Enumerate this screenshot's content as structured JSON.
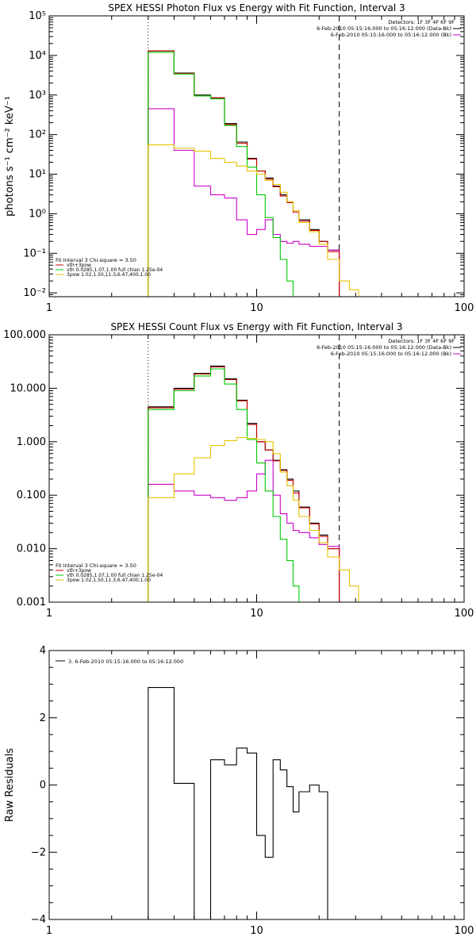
{
  "colors": {
    "data": "#000000",
    "background": "#cc0000",
    "total": "#00cc00",
    "thermal": "#cc00cc",
    "nonthermal": "#e6c400",
    "frame": "#000000"
  },
  "chart_data": [
    {
      "type": "line",
      "title": "SPEX HESSI Photon Flux vs Energy with Fit Function, Interval 3",
      "xlabel": "",
      "ylabel": "photons s⁻¹ cm⁻² keV⁻¹",
      "xscale": "log",
      "yscale": "log",
      "xlim": [
        1,
        100
      ],
      "ylim": [
        0.008,
        100000
      ],
      "x_ticks": [
        1,
        10,
        100
      ],
      "x_tick_labels": [
        "1",
        "10",
        "100"
      ],
      "y_ticks": [
        0.01,
        0.1,
        1,
        10,
        100,
        1000,
        10000,
        100000
      ],
      "y_tick_labels": [
        "10⁻²",
        "10⁻¹",
        "10⁰",
        "10¹",
        "10²",
        "10³",
        "10⁴",
        "10⁵"
      ],
      "vlines": [
        {
          "x": 3,
          "style": "dotted"
        },
        {
          "x": 25,
          "style": "dashed"
        }
      ],
      "legend_top": [
        "Detectors: 1F 3F 4F 6F 9F",
        "6-Feb-2010 05:15:16.000 to 05:16:12.000 (Data-Bk)",
        "6-Feb-2010 05:15:16.000 to 05:16:12.000 (Bk)"
      ],
      "legend_bottom": [
        "Fit Interval 3   Chi-square = 3.50",
        "vth+3pow",
        "vth 0.0285,1.07,1.00  full chian 1.25e-04",
        "3pow 1.02,1.50,11.3,6.47,400,1.00"
      ],
      "edges": [
        3,
        4,
        5,
        6,
        7,
        8,
        9,
        10,
        11,
        12,
        13,
        14,
        15,
        16,
        18,
        20,
        22,
        25,
        28,
        31,
        35
      ],
      "series": [
        {
          "name": "Data-Bk",
          "color": "data",
          "values": [
            13000,
            3600,
            1000,
            850,
            190,
            65,
            25,
            12,
            8,
            5,
            3,
            2,
            1.2,
            0.7,
            0.4,
            0.2,
            0.12,
            null,
            null,
            null
          ]
        },
        {
          "name": "Bk",
          "color": "thermal",
          "values": [
            450,
            40,
            5,
            3,
            2.5,
            0.7,
            0.3,
            0.4,
            0.7,
            0.3,
            0.2,
            0.18,
            0.2,
            0.17,
            0.15,
            0.15,
            0.12,
            0.008,
            null,
            null
          ]
        },
        {
          "name": "vth+3pow",
          "color": "background",
          "values": [
            13000,
            3500,
            950,
            850,
            180,
            60,
            24,
            12,
            7.5,
            4.8,
            2.8,
            1.9,
            1.1,
            0.65,
            0.38,
            0.2,
            0.11,
            null,
            null,
            null
          ]
        },
        {
          "name": "vth",
          "color": "total",
          "values": [
            12000,
            3400,
            950,
            800,
            170,
            50,
            15,
            3,
            0.8,
            0.25,
            0.07,
            0.02,
            0.008,
            null,
            null,
            null,
            null,
            null,
            null,
            null
          ]
        },
        {
          "name": "3pow",
          "color": "nonthermal",
          "values": [
            55,
            45,
            38,
            25,
            20,
            16,
            12,
            10,
            7,
            5.5,
            3.5,
            2,
            1.2,
            0.6,
            0.35,
            0.17,
            0.07,
            0.02,
            0.012,
            0.008
          ]
        }
      ]
    },
    {
      "type": "line",
      "title": "SPEX HESSI Count Flux vs Energy with Fit Function, Interval 3",
      "xlabel": "",
      "ylabel": "",
      "xscale": "log",
      "yscale": "log",
      "xlim": [
        1,
        100
      ],
      "ylim": [
        0.001,
        100
      ],
      "x_ticks": [
        1,
        10,
        100
      ],
      "x_tick_labels": [
        "1",
        "10",
        "100"
      ],
      "y_ticks": [
        0.001,
        0.01,
        0.1,
        1,
        10,
        100
      ],
      "y_tick_labels": [
        "0.001",
        "0.010",
        "0.100",
        "1.000",
        "10.000",
        "100.000"
      ],
      "vlines": [
        {
          "x": 3,
          "style": "dotted"
        },
        {
          "x": 25,
          "style": "dashed"
        }
      ],
      "legend_top": [
        "Detectors: 1F 3F 4F 6F 9F",
        "6-Feb-2010 05:15:16.000 to 05:16:12.000 (Data-Bk)",
        "6-Feb-2010 05:15:16.000 to 05:16:12.000 (Bk)"
      ],
      "legend_bottom": [
        "Fit Interval 3   Chi-square = 3.50",
        "vth+3pow",
        "vth 0.0285,1.07,1.00  full chian 1.25e-04",
        "3pow 1.02,1.50,11.3,6.47,400,1.00"
      ],
      "edges": [
        3,
        4,
        5,
        6,
        7,
        8,
        9,
        10,
        11,
        12,
        13,
        14,
        15,
        16,
        18,
        20,
        22,
        25,
        28,
        31,
        35
      ],
      "series": [
        {
          "name": "Data-Bk",
          "color": "data",
          "values": [
            4.5,
            10,
            19,
            26,
            15,
            6,
            2.2,
            1.0,
            0.7,
            0.45,
            0.3,
            0.2,
            0.12,
            0.06,
            0.03,
            0.018,
            0.01,
            null,
            null,
            null
          ]
        },
        {
          "name": "Bk",
          "color": "thermal",
          "values": [
            0.16,
            0.12,
            0.1,
            0.09,
            0.08,
            0.09,
            0.12,
            0.25,
            0.45,
            0.1,
            0.045,
            0.03,
            0.022,
            0.02,
            0.016,
            0.012,
            0.011,
            0.001,
            null,
            null
          ]
        },
        {
          "name": "vth+3pow",
          "color": "background",
          "values": [
            4.3,
            9.6,
            18.5,
            25,
            14.5,
            5.8,
            2.1,
            1.0,
            0.7,
            0.44,
            0.29,
            0.19,
            0.11,
            0.058,
            0.029,
            0.017,
            0.01,
            null,
            null,
            null
          ]
        },
        {
          "name": "vth",
          "color": "total",
          "values": [
            4,
            9,
            17,
            23,
            12,
            4,
            1.1,
            0.4,
            0.12,
            0.04,
            0.015,
            0.006,
            0.002,
            0.001,
            null,
            null,
            null,
            null,
            null,
            null
          ]
        },
        {
          "name": "3pow",
          "color": "nonthermal",
          "values": [
            0.09,
            0.25,
            0.5,
            0.85,
            1.05,
            1.2,
            1.15,
            1.1,
            1.0,
            0.6,
            0.27,
            0.15,
            0.08,
            0.04,
            0.022,
            0.013,
            0.007,
            0.004,
            0.002,
            0.001
          ]
        }
      ]
    },
    {
      "type": "line",
      "title": "",
      "xlabel": "",
      "ylabel": "Raw Residuals",
      "xscale": "log",
      "yscale": "linear",
      "xlim": [
        1,
        100
      ],
      "ylim": [
        -4,
        4
      ],
      "x_ticks": [
        1,
        10,
        100
      ],
      "x_tick_labels": [
        "1",
        "10",
        "100"
      ],
      "y_ticks": [
        -4,
        -2,
        0,
        2,
        4
      ],
      "y_tick_labels": [
        "−4",
        "−2",
        "0",
        "2",
        "4"
      ],
      "legend_top": [
        "3. 6-Feb-2010 05:15:16.000 to 05:16:12.000"
      ],
      "edges": [
        3,
        4,
        5,
        6,
        7,
        8,
        9,
        10,
        11,
        12,
        13,
        14,
        15,
        16,
        18,
        20,
        22,
        25
      ],
      "series": [
        {
          "name": "3. 6-Feb-2010 05:15:16.000 to 05:16:12.000",
          "color": "data",
          "values": [
            2.9,
            0.05,
            -4.0,
            0.75,
            0.6,
            1.1,
            0.95,
            -1.5,
            -2.15,
            0.75,
            0.45,
            -0.05,
            -0.8,
            -0.2,
            0.0,
            -0.2,
            null
          ]
        }
      ]
    }
  ]
}
